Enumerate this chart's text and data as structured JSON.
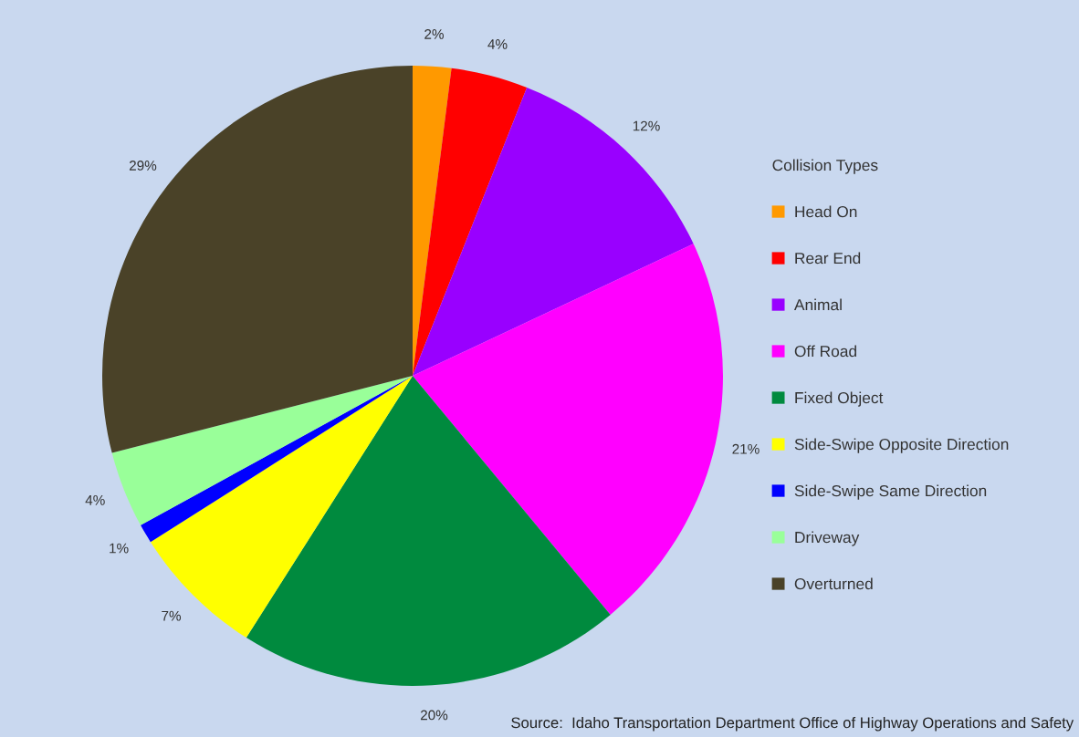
{
  "chart_data": {
    "type": "pie",
    "categories": [
      "Head On",
      "Rear End",
      "Animal",
      "Off Road",
      "Fixed Object",
      "Side-Swipe Opposite Direction",
      "Side-Swipe Same Direction",
      "Driveway",
      "Overturned"
    ],
    "values": [
      2,
      4,
      12,
      21,
      20,
      7,
      1,
      4,
      29
    ],
    "colors": [
      "#ff9900",
      "#ff0000",
      "#9900ff",
      "#ff00ff",
      "#008a3e",
      "#ffff00",
      "#0000ff",
      "#99ff99",
      "#4a4228"
    ],
    "value_labels": [
      "2%",
      "4%",
      "12%",
      "21%",
      "20%",
      "7%",
      "1%",
      "4%",
      "29%"
    ],
    "legend": "right",
    "legend_title": "Collision Types",
    "annotations": [
      "Source:  Idaho Transportation Department Office of Highway Operations and Safety"
    ]
  }
}
